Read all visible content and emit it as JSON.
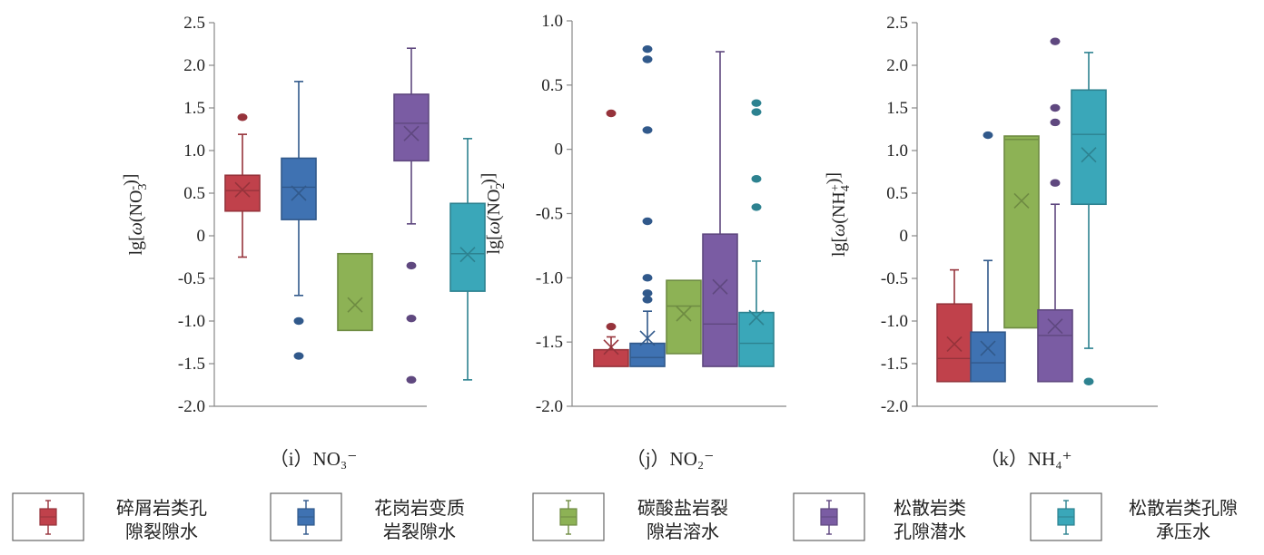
{
  "colors": {
    "c1": "#c0414b",
    "c2": "#3f72b2",
    "c3": "#8db255",
    "c4": "#7a5ca3",
    "c5": "#3aa7b9"
  },
  "legend": [
    {
      "key": "c1",
      "line1": "碎屑岩类孔",
      "line2": "隙裂隙水"
    },
    {
      "key": "c2",
      "line1": "花岗岩变质",
      "line2": "岩裂隙水"
    },
    {
      "key": "c3",
      "line1": "碳酸盐岩裂",
      "line2": "隙岩溶水"
    },
    {
      "key": "c4",
      "line1": "松散岩类",
      "line2": "孔隙潜水"
    },
    {
      "key": "c5",
      "line1": "松散岩类孔隙",
      "line2": "承压水"
    }
  ],
  "chart_data": [
    {
      "type": "box",
      "caption": "（i）NO₃⁻",
      "ylabel": "lg[ω(NO₃⁻)]",
      "ylim": [
        -2.0,
        2.5
      ],
      "yticks": [
        "2.5",
        "2.0",
        "1.5",
        "1.0",
        "0.5",
        "0",
        "-0.5",
        "-1.0",
        "-1.5",
        "-2.0"
      ],
      "yticks_values": [
        2.5,
        2.0,
        1.5,
        1.0,
        0.5,
        0,
        -0.5,
        -1.0,
        -1.5,
        -2.0
      ],
      "boxes": [
        {
          "key": "c1",
          "q1": 0.29,
          "median": 0.53,
          "q3": 0.71,
          "mean": 0.54,
          "whisker_low": -0.25,
          "whisker_high": 1.19,
          "outliers": [
            1.39
          ]
        },
        {
          "key": "c2",
          "q1": 0.19,
          "median": 0.57,
          "q3": 0.91,
          "mean": 0.5,
          "whisker_low": -0.7,
          "whisker_high": 1.81,
          "outliers": [
            -1.0,
            -1.41
          ]
        },
        {
          "key": "c3",
          "q1": -1.11,
          "median": -1.11,
          "q3": -0.21,
          "mean": -0.81,
          "whisker_low": null,
          "whisker_high": null,
          "outliers": []
        },
        {
          "key": "c4",
          "q1": 0.88,
          "median": 1.32,
          "q3": 1.66,
          "mean": 1.2,
          "whisker_low": 0.14,
          "whisker_high": 2.2,
          "outliers": [
            -0.35,
            -0.97,
            -1.69
          ]
        },
        {
          "key": "c5",
          "q1": -0.65,
          "median": -0.21,
          "q3": 0.38,
          "mean": -0.22,
          "whisker_low": -1.69,
          "whisker_high": 1.14,
          "outliers": []
        }
      ]
    },
    {
      "type": "box",
      "caption": "（j）NO₂⁻",
      "ylabel": "lg[ω(NO₂⁻)]",
      "ylim": [
        -2.0,
        1.0
      ],
      "yticks": [
        "1.0",
        "0.5",
        "0",
        "-0.5",
        "-1.0",
        "-1.5",
        "-2.0"
      ],
      "yticks_values": [
        1.0,
        0.5,
        0,
        -0.5,
        -1.0,
        -1.5,
        -2.0
      ],
      "boxes": [
        {
          "key": "c1",
          "q1": -1.69,
          "median": -1.56,
          "q3": -1.56,
          "mean": -1.54,
          "whisker_low": null,
          "whisker_high": -1.46,
          "outliers": [
            0.28,
            -1.38
          ]
        },
        {
          "key": "c2",
          "q1": -1.69,
          "median": -1.62,
          "q3": -1.51,
          "mean": -1.47,
          "whisker_low": null,
          "whisker_high": -1.26,
          "outliers": [
            0.78,
            0.7,
            0.15,
            -0.56,
            -1.0,
            -1.12,
            -1.17
          ]
        },
        {
          "key": "c3",
          "q1": -1.59,
          "median": -1.22,
          "q3": -1.02,
          "mean": -1.28,
          "whisker_low": null,
          "whisker_high": null,
          "outliers": []
        },
        {
          "key": "c4",
          "q1": -1.69,
          "median": -1.36,
          "q3": -0.66,
          "mean": -1.07,
          "whisker_low": null,
          "whisker_high": 0.76,
          "outliers": []
        },
        {
          "key": "c5",
          "q1": -1.69,
          "median": -1.51,
          "q3": -1.27,
          "mean": -1.31,
          "whisker_low": null,
          "whisker_high": -0.87,
          "outliers": [
            0.36,
            0.29,
            -0.23,
            -0.45
          ]
        }
      ]
    },
    {
      "type": "box",
      "caption": "（k）NH₄⁺",
      "ylabel": "lg[ω(NH₄⁺)]",
      "ylim": [
        -2.0,
        2.5
      ],
      "yticks": [
        "2.5",
        "2.0",
        "1.5",
        "1.0",
        "0.5",
        "0",
        "-0.5",
        "-1.0",
        "-1.5",
        "-2.0"
      ],
      "yticks_values": [
        2.5,
        2.0,
        1.5,
        1.0,
        0.5,
        0,
        -0.5,
        -1.0,
        -1.5,
        -2.0
      ],
      "boxes": [
        {
          "key": "c1",
          "q1": -1.71,
          "median": -1.44,
          "q3": -0.8,
          "mean": -1.27,
          "whisker_low": null,
          "whisker_high": -0.4,
          "outliers": []
        },
        {
          "key": "c2",
          "q1": -1.71,
          "median": -1.49,
          "q3": -1.13,
          "mean": -1.32,
          "whisker_low": null,
          "whisker_high": -0.29,
          "outliers": [
            1.18
          ]
        },
        {
          "key": "c3",
          "q1": -1.08,
          "median": 1.13,
          "q3": 1.17,
          "mean": 0.41,
          "whisker_low": null,
          "whisker_high": null,
          "outliers": []
        },
        {
          "key": "c4",
          "q1": -1.71,
          "median": -1.17,
          "q3": -0.87,
          "mean": -1.06,
          "whisker_low": null,
          "whisker_high": 0.37,
          "outliers": [
            2.28,
            1.5,
            1.33,
            0.62
          ]
        },
        {
          "key": "c5",
          "q1": 0.37,
          "median": 1.19,
          "q3": 1.71,
          "mean": 0.95,
          "whisker_low": -1.32,
          "whisker_high": 2.15,
          "outliers": [
            -1.71
          ]
        }
      ]
    }
  ]
}
